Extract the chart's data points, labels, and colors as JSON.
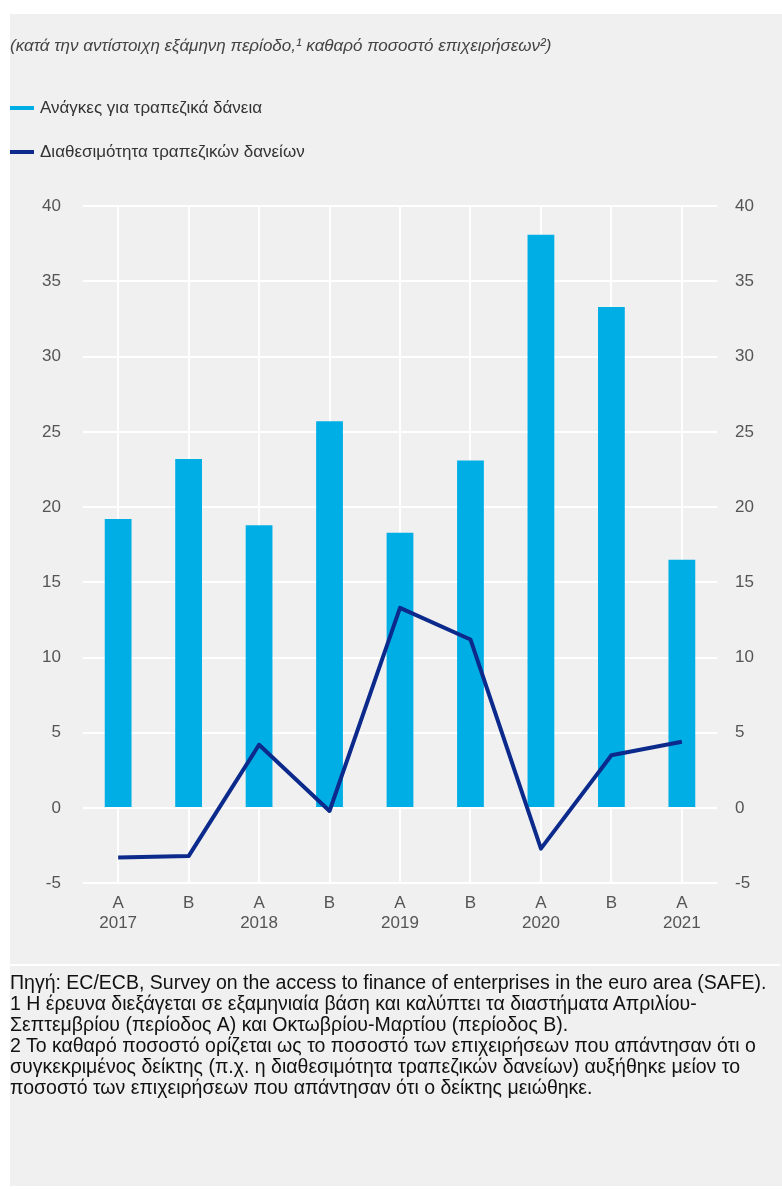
{
  "chart_data": {
    "type": "bar",
    "title": "(κατά την αντίστοιχη εξάμηνη περίοδο,¹ καθαρό ποσοστό επιχειρήσεων²)",
    "categories": [
      "A\n2017",
      "B",
      "A\n2018",
      "B",
      "A\n2019",
      "B",
      "A\n2020",
      "B",
      "A\n2021"
    ],
    "series": [
      {
        "name": "Ανάγκες για τραπεζικά δάνεια",
        "color": "#00aee6",
        "values": [
          19.2,
          23.2,
          18.8,
          25.7,
          18.3,
          23.1,
          38.1,
          33.3,
          16.5
        ]
      },
      {
        "name": "Διαθεσιμότητα τραπεζικών δανείων",
        "type": "line",
        "color": "#0b2a8c",
        "values": [
          -3.3,
          -3.2,
          4.2,
          -0.2,
          13.3,
          11.2,
          -2.7,
          3.5,
          4.4
        ]
      }
    ],
    "ylim": [
      -5,
      40
    ],
    "yticks": [
      -5,
      0,
      5,
      10,
      15,
      20,
      25,
      30,
      35,
      40
    ],
    "y2lim": [
      -5,
      40
    ],
    "y2ticks": [
      -5,
      0,
      5,
      10,
      15,
      20,
      25,
      30,
      35,
      40
    ],
    "grid": true,
    "legend": "top left",
    "marker": "none",
    "line_style": "solid",
    "annotations": [
      "Πηγή: EC/ECB, Survey on the access to finance of enterprises in the euro area (SAFE).",
      "1 Η έρευνα διεξάγεται σε εξαμηνιαία βάση και καλύπτει τα διαστήματα Απριλίου-Σεπτεμβρίου (περίοδος A) και Οκτωβρίου-Μαρτίου (περίοδος B).",
      "2 Το καθαρό ποσοστό ορίζεται ως το ποσοστό των επιχειρήσεων που απάντησαν ότι ο συγκεκριμένος δείκτης (π.χ. η διαθεσιμότητα τραπεζικών δανείων) αυξήθηκε μείον το ποσοστό των επιχειρήσεων που απάντησαν ότι ο δείκτης μειώθηκε."
    ]
  }
}
